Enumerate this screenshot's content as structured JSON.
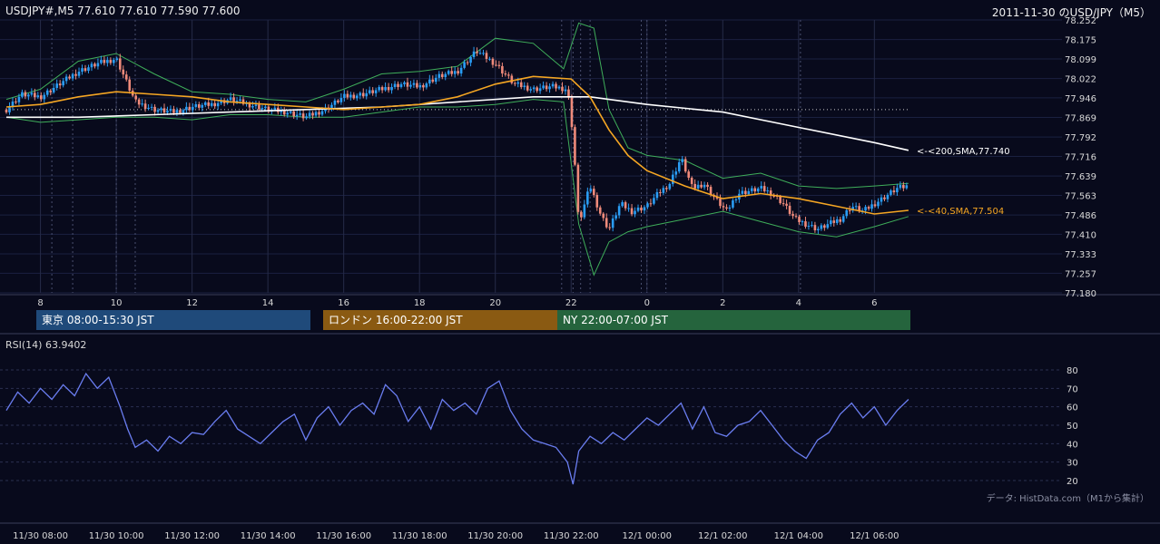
{
  "header": {
    "symbol_ohlc": "USDJPY#,M5 77.610 77.610 77.590 77.600",
    "title_right": "2011-11-30 のUSD/JPY（M5）"
  },
  "sessions": [
    {
      "label": "東京 08:00-15:30 JST",
      "color": "#1f4a7a"
    },
    {
      "label": "ロンドン 16:00-22:00 JST",
      "color": "#8a5a12"
    },
    {
      "label": "NY 22:00-07:00 JST",
      "color": "#25643d"
    }
  ],
  "rsi_label": "RSI(14) 63.9402",
  "credit": "データ: HistData.com（M1から集計）",
  "colors": {
    "background": "#080a1c",
    "candle_up": "#2a9df4",
    "candle_down": "#ef8a7a",
    "sma40": "#f5a623",
    "sma200": "#ffffff",
    "bollinger": "#3fae5a",
    "rsi_line": "#6a7df0"
  },
  "chart_data": [
    {
      "type": "line",
      "title": "USDJPY M5 price",
      "y_ticks": [
        "78.252",
        "78.175",
        "78.099",
        "78.022",
        "77.946",
        "77.869",
        "77.792",
        "77.716",
        "77.639",
        "77.563",
        "77.486",
        "77.410",
        "77.333",
        "77.257",
        "77.180"
      ],
      "ylim": [
        77.18,
        78.252
      ],
      "x_ticks": [
        "8",
        "10",
        "12",
        "14",
        "16",
        "18",
        "20",
        "22",
        "0",
        "2",
        "4",
        "6"
      ],
      "x_time_labels": [
        "11/30 08:00",
        "11/30 10:00",
        "11/30 12:00",
        "11/30 14:00",
        "11/30 16:00",
        "11/30 18:00",
        "11/30 20:00",
        "11/30 22:00",
        "12/1 00:00",
        "12/1 02:00",
        "12/1 04:00",
        "12/1 06:00"
      ],
      "x_hours": [
        8,
        10,
        12,
        14,
        16,
        18,
        20,
        22,
        24,
        26,
        28,
        30
      ],
      "xlim": [
        7.1,
        30.95
      ],
      "reference_level": 77.9,
      "series": [
        {
          "name": "SMA200",
          "label": "<-<200,SMA,77.740",
          "last": 77.74,
          "x": [
            7.1,
            9,
            11,
            13,
            15,
            17,
            19,
            21,
            22.5,
            24,
            26,
            28,
            30,
            30.9
          ],
          "values": [
            77.87,
            77.87,
            77.88,
            77.89,
            77.9,
            77.91,
            77.93,
            77.95,
            77.95,
            77.92,
            77.89,
            77.83,
            77.77,
            77.74
          ]
        },
        {
          "name": "SMA40",
          "label": "<-<40,SMA,77.504",
          "last": 77.504,
          "x": [
            7.1,
            8,
            9,
            10,
            11,
            12,
            13,
            14,
            15,
            16,
            17,
            18,
            19,
            20,
            21,
            22,
            22.5,
            23,
            23.5,
            24,
            25,
            26,
            27,
            28,
            29,
            30,
            30.9
          ],
          "values": [
            77.91,
            77.92,
            77.95,
            77.97,
            77.96,
            77.95,
            77.93,
            77.92,
            77.91,
            77.9,
            77.91,
            77.92,
            77.95,
            78.0,
            78.03,
            78.02,
            77.95,
            77.82,
            77.72,
            77.66,
            77.6,
            77.55,
            77.57,
            77.55,
            77.52,
            77.49,
            77.504
          ]
        },
        {
          "name": "BB upper",
          "x": [
            7.1,
            8,
            9,
            10,
            11,
            12,
            13,
            14,
            15,
            16,
            17,
            18,
            19,
            20,
            21,
            21.8,
            22.2,
            22.6,
            23,
            23.5,
            24,
            25,
            26,
            27,
            28,
            29,
            30,
            30.9
          ],
          "values": [
            77.94,
            77.98,
            78.09,
            78.12,
            78.04,
            77.97,
            77.96,
            77.94,
            77.93,
            77.98,
            78.04,
            78.05,
            78.07,
            78.18,
            78.16,
            78.06,
            78.24,
            78.22,
            77.9,
            77.75,
            77.72,
            77.7,
            77.63,
            77.65,
            77.6,
            77.59,
            77.6,
            77.61
          ]
        },
        {
          "name": "BB lower",
          "x": [
            7.1,
            8,
            9,
            10,
            11,
            12,
            13,
            14,
            15,
            16,
            17,
            18,
            19,
            20,
            21,
            21.8,
            22.2,
            22.6,
            23,
            23.5,
            24,
            25,
            26,
            27,
            28,
            29,
            30,
            30.9
          ],
          "values": [
            77.87,
            77.85,
            77.86,
            77.87,
            77.87,
            77.86,
            77.88,
            77.88,
            77.87,
            77.87,
            77.89,
            77.91,
            77.91,
            77.92,
            77.94,
            77.93,
            77.45,
            77.25,
            77.38,
            77.42,
            77.44,
            77.47,
            77.5,
            77.46,
            77.42,
            77.4,
            77.44,
            77.48
          ]
        },
        {
          "name": "Close",
          "x": [
            7.1,
            7.5,
            8,
            8.5,
            9,
            9.5,
            10,
            10.5,
            11,
            11.5,
            12,
            12.5,
            13,
            13.5,
            14,
            14.5,
            15,
            15.5,
            16,
            16.5,
            17,
            17.5,
            18,
            18.5,
            19,
            19.5,
            20,
            20.5,
            21,
            21.5,
            21.9,
            22.05,
            22.2,
            22.5,
            22.8,
            23,
            23.3,
            23.6,
            24,
            24.3,
            24.6,
            24.9,
            25.2,
            25.5,
            25.8,
            26.1,
            26.4,
            26.7,
            27,
            27.3,
            27.6,
            27.9,
            28.2,
            28.5,
            28.8,
            29.1,
            29.4,
            29.7,
            30,
            30.3,
            30.6,
            30.9
          ],
          "values": [
            77.9,
            77.96,
            77.95,
            78.0,
            78.05,
            78.08,
            78.1,
            77.93,
            77.9,
            77.89,
            77.91,
            77.92,
            77.94,
            77.92,
            77.9,
            77.89,
            77.87,
            77.9,
            77.95,
            77.96,
            77.98,
            78.0,
            77.99,
            78.03,
            78.05,
            78.13,
            78.08,
            78.0,
            77.98,
            77.99,
            77.98,
            77.8,
            77.45,
            77.6,
            77.48,
            77.43,
            77.53,
            77.5,
            77.52,
            77.57,
            77.61,
            77.71,
            77.59,
            77.61,
            77.55,
            77.5,
            77.57,
            77.58,
            77.59,
            77.57,
            77.53,
            77.47,
            77.45,
            77.43,
            77.45,
            77.47,
            77.52,
            77.5,
            77.53,
            77.56,
            77.59,
            77.6
          ]
        }
      ]
    },
    {
      "type": "line",
      "title": "RSI(14) 63.9402",
      "y_ticks": [
        "80",
        "70",
        "60",
        "50",
        "40",
        "30",
        "20"
      ],
      "ylim": [
        15,
        85
      ],
      "xlim": [
        7.1,
        30.95
      ],
      "series": [
        {
          "name": "RSI(14)",
          "x": [
            7.1,
            7.4,
            7.7,
            8,
            8.3,
            8.6,
            8.9,
            9.2,
            9.5,
            9.8,
            10.1,
            10.3,
            10.5,
            10.8,
            11.1,
            11.4,
            11.7,
            12,
            12.3,
            12.6,
            12.9,
            13.2,
            13.5,
            13.8,
            14.1,
            14.4,
            14.7,
            15,
            15.3,
            15.6,
            15.9,
            16.2,
            16.5,
            16.8,
            17.1,
            17.4,
            17.7,
            18,
            18.3,
            18.6,
            18.9,
            19.2,
            19.5,
            19.8,
            20.1,
            20.4,
            20.7,
            21,
            21.3,
            21.6,
            21.9,
            22.05,
            22.2,
            22.5,
            22.8,
            23.1,
            23.4,
            23.7,
            24,
            24.3,
            24.6,
            24.9,
            25.2,
            25.5,
            25.8,
            26.1,
            26.4,
            26.7,
            27,
            27.3,
            27.6,
            27.9,
            28.2,
            28.5,
            28.8,
            29.1,
            29.4,
            29.7,
            30,
            30.3,
            30.6,
            30.9
          ],
          "values": [
            58,
            68,
            62,
            70,
            64,
            72,
            66,
            78,
            70,
            76,
            60,
            48,
            38,
            42,
            36,
            44,
            40,
            46,
            45,
            52,
            58,
            48,
            44,
            40,
            46,
            52,
            56,
            42,
            54,
            60,
            50,
            58,
            62,
            56,
            72,
            66,
            52,
            60,
            48,
            64,
            58,
            62,
            56,
            70,
            74,
            58,
            48,
            42,
            40,
            38,
            30,
            18,
            36,
            44,
            40,
            46,
            42,
            48,
            54,
            50,
            56,
            62,
            48,
            60,
            46,
            44,
            50,
            52,
            58,
            50,
            42,
            36,
            32,
            42,
            46,
            56,
            62,
            54,
            60,
            50,
            58,
            64
          ]
        }
      ]
    }
  ]
}
